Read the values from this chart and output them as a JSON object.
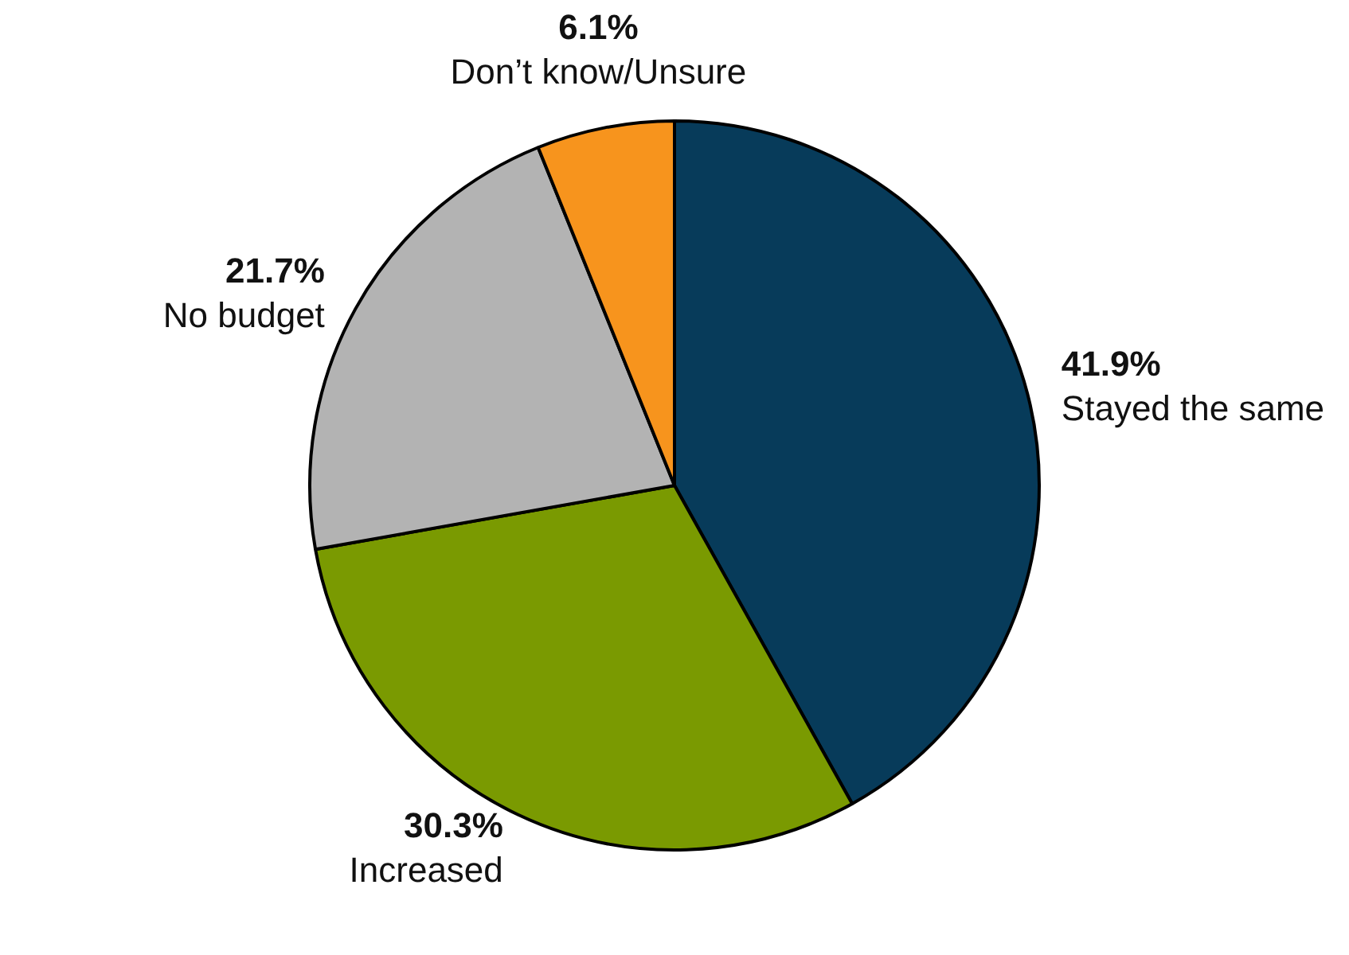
{
  "chart_data": {
    "type": "pie",
    "categories": [
      "Stayed the same",
      "Increased",
      "No budget",
      "Don’t know/Unsure"
    ],
    "values": [
      41.9,
      30.3,
      21.7,
      6.1
    ],
    "value_labels": [
      "41.9%",
      "30.3%",
      "21.7%",
      "6.1%"
    ],
    "colors": [
      "#073b5a",
      "#7a9a01",
      "#b3b3b3",
      "#f7941d"
    ],
    "legend": false
  }
}
